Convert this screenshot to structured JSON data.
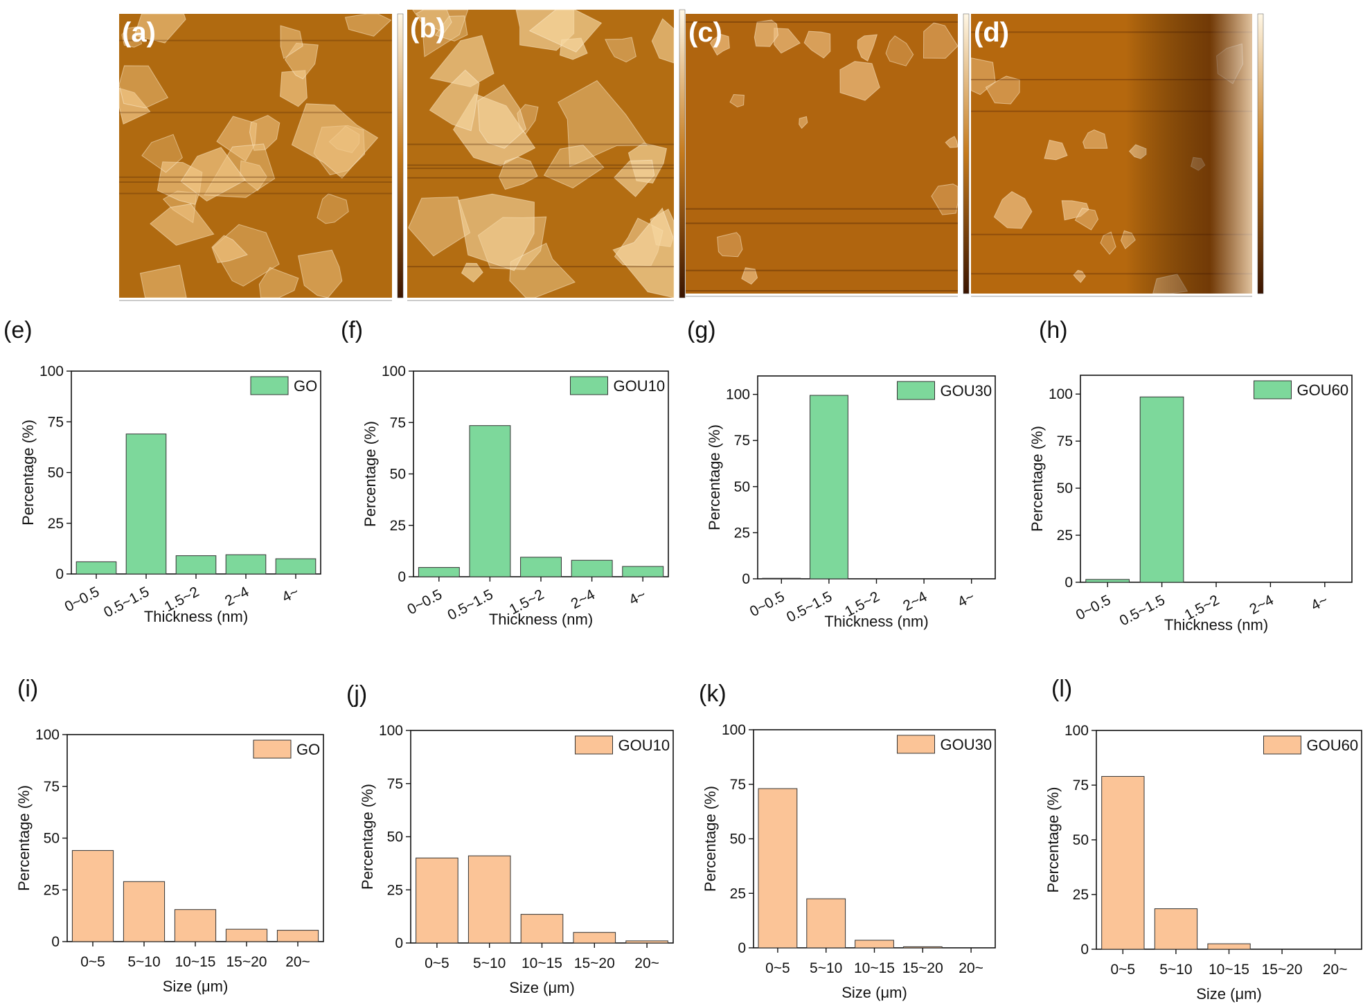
{
  "figure": {
    "afm_panels": [
      {
        "label": "(a)",
        "surface_colors": {
          "base": "#b06a10",
          "light": "#f3c98a",
          "dark": "#5a2a05"
        }
      },
      {
        "label": "(b)",
        "surface_colors": {
          "base": "#b36d12",
          "light": "#f6d6a0",
          "dark": "#4a2003"
        }
      },
      {
        "label": "(c)",
        "surface_colors": {
          "base": "#b0650f",
          "light": "#f1c488",
          "dark": "#3a1802"
        }
      },
      {
        "label": "(d)",
        "surface_colors": {
          "base": "#b5680e",
          "light": "#f0c58c",
          "dark": "#4a2006"
        }
      }
    ],
    "thickness_color": "#7dd89b",
    "size_color": "#fbc497"
  },
  "chart_data": [
    {
      "panel": "(e)",
      "type": "bar",
      "legend": "GO",
      "categories": [
        "0~0.5",
        "0.5~1.5",
        "1.5~2",
        "2~4",
        "4~"
      ],
      "values": [
        6,
        69,
        9,
        9.5,
        7.5
      ],
      "xlabel": "Thickness (nm)",
      "ylabel": "Percentage (%)",
      "ylim": [
        0,
        100
      ],
      "yticks": [
        "0",
        "25",
        "50",
        "75",
        "100"
      ],
      "color": "#7dd89b",
      "legend_position": "top-right"
    },
    {
      "panel": "(f)",
      "type": "bar",
      "legend": "GOU10",
      "categories": [
        "0~0.5",
        "0.5~1.5",
        "1.5~2",
        "2~4",
        "4~"
      ],
      "values": [
        4.5,
        73.5,
        9.5,
        8,
        5
      ],
      "xlabel": "Thickness (nm)",
      "ylabel": "Percentage (%)",
      "ylim": [
        0,
        100
      ],
      "yticks": [
        "0",
        "25",
        "50",
        "75",
        "100"
      ],
      "color": "#7dd89b",
      "legend_position": "top-right"
    },
    {
      "panel": "(g)",
      "type": "bar",
      "legend": "GOU30",
      "categories": [
        "0~0.5",
        "0.5~1.5",
        "1.5~2",
        "2~4",
        "4~"
      ],
      "values": [
        0.3,
        99.5,
        0,
        0,
        0
      ],
      "xlabel": "Thickness (nm)",
      "ylabel": "Percentage (%)",
      "ylim": [
        0,
        110
      ],
      "yticks": [
        "0",
        "25",
        "50",
        "75",
        "100"
      ],
      "color": "#7dd89b",
      "legend_position": "top-right"
    },
    {
      "panel": "(h)",
      "type": "bar",
      "legend": "GOU60",
      "categories": [
        "0~0.5",
        "0.5~1.5",
        "1.5~2",
        "2~4",
        "4~"
      ],
      "values": [
        1.5,
        98.5,
        0,
        0,
        0
      ],
      "xlabel": "Thickness (nm)",
      "ylabel": "Percentage (%)",
      "ylim": [
        0,
        110
      ],
      "yticks": [
        "0",
        "25",
        "50",
        "75",
        "100"
      ],
      "color": "#7dd89b",
      "legend_position": "top-right"
    },
    {
      "panel": "(i)",
      "type": "bar",
      "legend": "GO",
      "categories": [
        "0~5",
        "5~10",
        "10~15",
        "15~20",
        "20~"
      ],
      "values": [
        44,
        29,
        15.5,
        6,
        5.5
      ],
      "xlabel": "Size (μm)",
      "ylabel": "Percentage (%)",
      "ylim": [
        0,
        100
      ],
      "yticks": [
        "0",
        "25",
        "50",
        "75",
        "100"
      ],
      "color": "#fbc497",
      "legend_position": "top-right"
    },
    {
      "panel": "(j)",
      "type": "bar",
      "legend": "GOU10",
      "categories": [
        "0~5",
        "5~10",
        "10~15",
        "15~20",
        "20~"
      ],
      "values": [
        40,
        41,
        13.5,
        5,
        1
      ],
      "xlabel": "Size (μm)",
      "ylabel": "Percentage (%)",
      "ylim": [
        0,
        100
      ],
      "yticks": [
        "0",
        "25",
        "50",
        "75",
        "100"
      ],
      "color": "#fbc497",
      "legend_position": "top-right"
    },
    {
      "panel": "(k)",
      "type": "bar",
      "legend": "GOU30",
      "categories": [
        "0~5",
        "5~10",
        "10~15",
        "15~20",
        "20~"
      ],
      "values": [
        73,
        22.5,
        3.5,
        0.5,
        0
      ],
      "xlabel": "Size (μm)",
      "ylabel": "Percentage (%)",
      "ylim": [
        0,
        100
      ],
      "yticks": [
        "0",
        "25",
        "50",
        "75",
        "100"
      ],
      "color": "#fbc497",
      "legend_position": "top-right"
    },
    {
      "panel": "(l)",
      "type": "bar",
      "legend": "GOU60",
      "categories": [
        "0~5",
        "5~10",
        "10~15",
        "15~20",
        "20~"
      ],
      "values": [
        79,
        18.5,
        2.5,
        0,
        0
      ],
      "xlabel": "Size (μm)",
      "ylabel": "Percentage (%)",
      "ylim": [
        0,
        100
      ],
      "yticks": [
        "0",
        "25",
        "50",
        "75",
        "100"
      ],
      "color": "#fbc497",
      "legend_position": "top-right"
    }
  ]
}
